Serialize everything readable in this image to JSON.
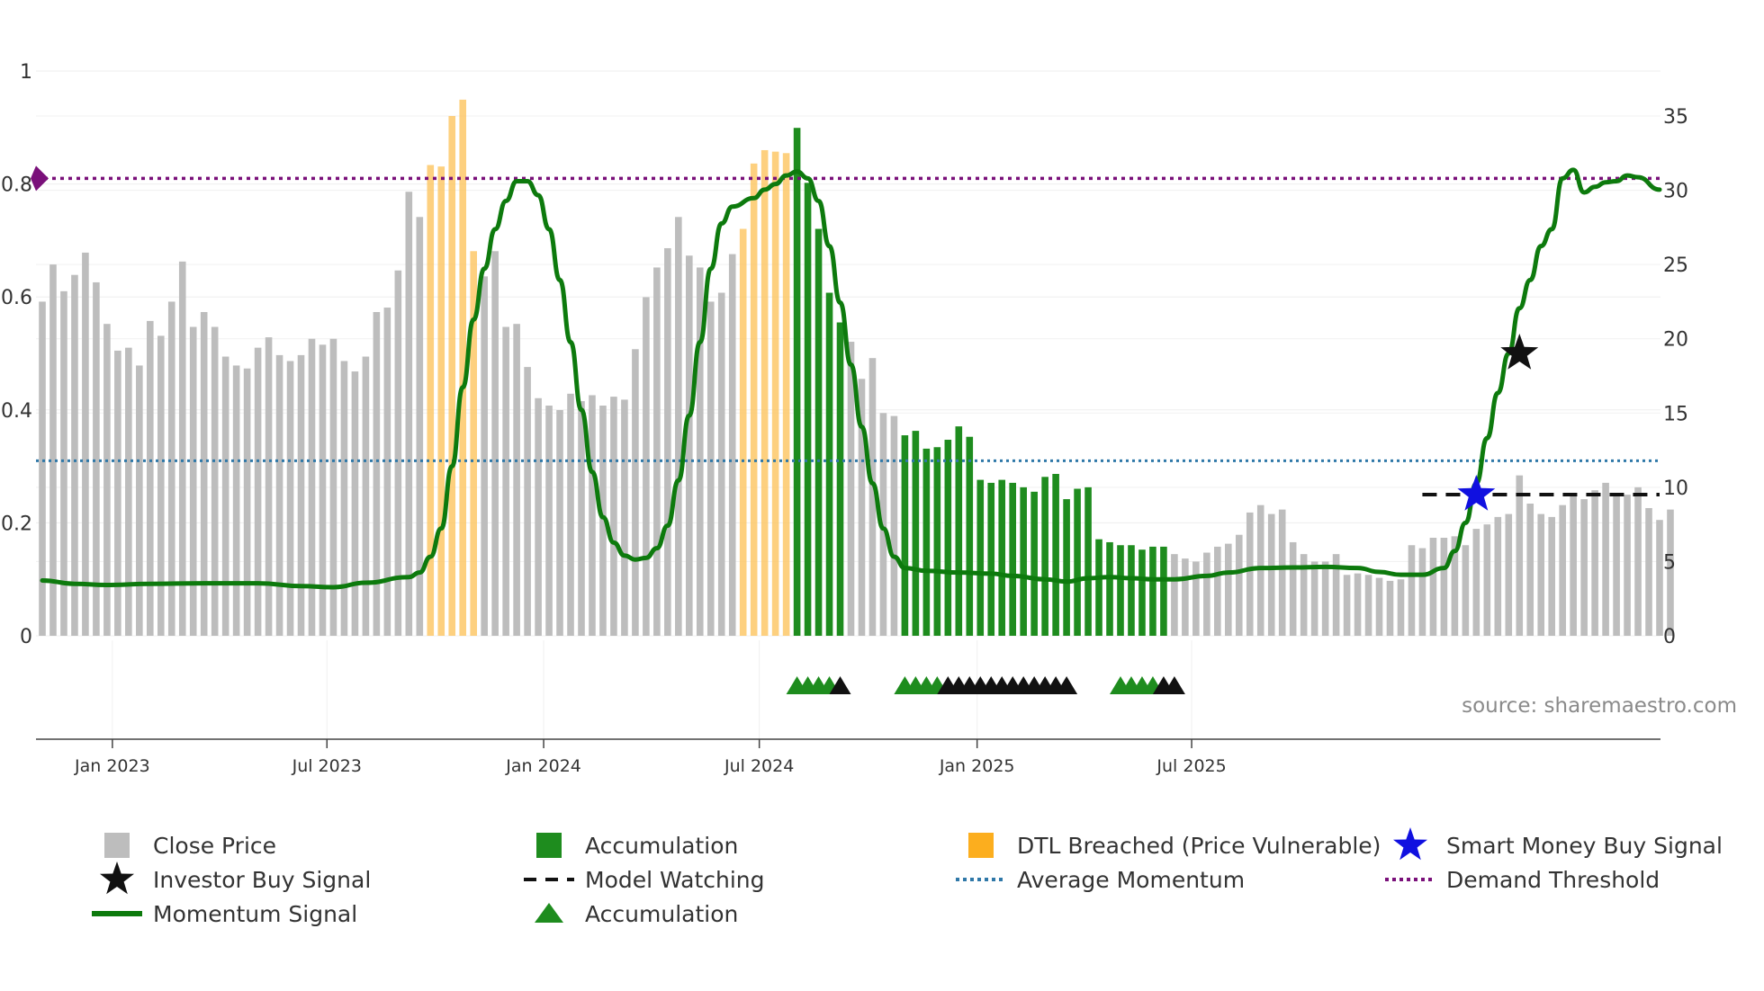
{
  "chart_data": {
    "type": "bar",
    "title": "",
    "source": "source: sharemaestro.com",
    "colors": {
      "close": "#bdbdbd",
      "accumulation": "#1e8c1e",
      "dtl": "#fcc45f",
      "momentum": "#0d7a0d",
      "model_watching": "#111111",
      "average": "#2f78a8",
      "demand": "#7a107a",
      "investor_star": "#111111",
      "smart_star": "#1010e0"
    },
    "y_left": {
      "min": 0,
      "max": 1,
      "ticks": [
        "0",
        "0.2",
        "0.4",
        "0.6",
        "0.8",
        "1"
      ]
    },
    "y_right": {
      "min": 0,
      "max": 35,
      "ticks": [
        "0",
        "5",
        "10",
        "15",
        "20",
        "25",
        "30",
        "35"
      ]
    },
    "x_ticks": [
      "Jan 2023",
      "Jul 2023",
      "Jan 2024",
      "Jul 2024",
      "Jan 2025",
      "Jul 2025"
    ],
    "close_price": [
      22.5,
      25.0,
      23.2,
      24.3,
      25.8,
      23.8,
      21.0,
      19.2,
      19.4,
      18.2,
      21.2,
      20.2,
      22.5,
      25.2,
      20.8,
      21.8,
      20.8,
      18.8,
      18.2,
      18.0,
      19.4,
      20.1,
      18.9,
      18.5,
      18.9,
      20.0,
      19.6,
      20.0,
      18.5,
      17.8,
      18.8,
      21.8,
      22.1,
      24.6,
      29.9,
      28.2,
      31.7,
      31.6,
      35.0,
      36.1,
      25.9,
      24.2,
      25.9,
      20.8,
      21.0,
      18.1,
      16.0,
      15.5,
      15.2,
      16.3,
      15.8,
      16.2,
      15.5,
      16.1,
      15.9,
      19.3,
      22.8,
      24.8,
      26.1,
      28.2,
      25.6,
      24.8,
      22.5,
      23.1,
      25.7,
      27.4,
      31.8,
      32.7,
      32.6,
      32.5,
      34.2,
      30.5,
      27.4,
      23.1,
      21.1,
      19.8,
      17.3,
      18.7,
      15.0,
      14.8,
      13.5,
      13.8,
      12.6,
      12.7,
      13.2,
      14.1,
      13.4,
      10.5,
      10.3,
      10.5,
      10.3,
      10.0,
      9.7,
      10.7,
      10.9,
      9.2,
      9.9,
      10.0,
      6.5,
      6.3,
      6.1,
      6.1,
      5.8,
      6.0,
      6.0,
      5.5,
      5.2,
      5.0,
      5.6,
      6.0,
      6.2,
      6.8,
      8.3,
      8.8,
      8.2,
      8.5,
      6.3,
      5.5,
      5.0,
      5.0,
      5.5,
      4.1,
      4.2,
      4.1,
      3.9,
      3.7,
      3.8,
      6.1,
      5.9,
      6.6,
      6.6,
      6.7,
      6.1,
      7.2,
      7.5,
      8.0,
      8.2,
      10.8,
      8.9,
      8.2,
      8.0,
      8.8,
      9.4,
      9.2,
      9.8,
      10.3,
      9.4,
      9.5,
      10.0,
      8.6,
      7.8,
      8.5
    ],
    "accumulation_bars": [
      70,
      71,
      72,
      73,
      74,
      80,
      81,
      82,
      83,
      84,
      85,
      86,
      87,
      88,
      89,
      90,
      91,
      92,
      93,
      94,
      95,
      96,
      97,
      98,
      99,
      100,
      101,
      102,
      103,
      104
    ],
    "dtl_breached_bars": [
      36,
      37,
      38,
      39,
      40,
      65,
      66,
      67,
      68,
      69
    ],
    "momentum_signal": [
      [
        0,
        0.098
      ],
      [
        3,
        0.092
      ],
      [
        6,
        0.09
      ],
      [
        10,
        0.092
      ],
      [
        15,
        0.093
      ],
      [
        20,
        0.093
      ],
      [
        24,
        0.088
      ],
      [
        27,
        0.086
      ],
      [
        30,
        0.094
      ],
      [
        34,
        0.104
      ],
      [
        35,
        0.112
      ],
      [
        36,
        0.14
      ],
      [
        37,
        0.19
      ],
      [
        38,
        0.3
      ],
      [
        39,
        0.44
      ],
      [
        40,
        0.56
      ],
      [
        41,
        0.65
      ],
      [
        42,
        0.72
      ],
      [
        43,
        0.77
      ],
      [
        44,
        0.805
      ],
      [
        45,
        0.805
      ],
      [
        46,
        0.78
      ],
      [
        47,
        0.72
      ],
      [
        48,
        0.63
      ],
      [
        49,
        0.52
      ],
      [
        50,
        0.4
      ],
      [
        51,
        0.29
      ],
      [
        52,
        0.21
      ],
      [
        53,
        0.165
      ],
      [
        54,
        0.142
      ],
      [
        55,
        0.135
      ],
      [
        56,
        0.138
      ],
      [
        57,
        0.155
      ],
      [
        58,
        0.195
      ],
      [
        59,
        0.275
      ],
      [
        60,
        0.39
      ],
      [
        61,
        0.52
      ],
      [
        62,
        0.65
      ],
      [
        63,
        0.73
      ],
      [
        64,
        0.76
      ],
      [
        66,
        0.775
      ],
      [
        67,
        0.79
      ],
      [
        68,
        0.8
      ],
      [
        69,
        0.815
      ],
      [
        70,
        0.822
      ],
      [
        71,
        0.81
      ],
      [
        72,
        0.77
      ],
      [
        73,
        0.69
      ],
      [
        74,
        0.59
      ],
      [
        75,
        0.48
      ],
      [
        76,
        0.37
      ],
      [
        77,
        0.27
      ],
      [
        78,
        0.19
      ],
      [
        79,
        0.14
      ],
      [
        80,
        0.12
      ],
      [
        82,
        0.115
      ],
      [
        85,
        0.112
      ],
      [
        88,
        0.11
      ],
      [
        90,
        0.106
      ],
      [
        93,
        0.1
      ],
      [
        95,
        0.096
      ],
      [
        97,
        0.102
      ],
      [
        99,
        0.104
      ],
      [
        101,
        0.102
      ],
      [
        103,
        0.1
      ],
      [
        105,
        0.1
      ],
      [
        108,
        0.106
      ],
      [
        110,
        0.112
      ],
      [
        113,
        0.12
      ],
      [
        116,
        0.121
      ],
      [
        119,
        0.122
      ],
      [
        122,
        0.12
      ],
      [
        124,
        0.113
      ],
      [
        126,
        0.108
      ],
      [
        128,
        0.108
      ],
      [
        130,
        0.12
      ],
      [
        131,
        0.15
      ],
      [
        132,
        0.2
      ],
      [
        133,
        0.27
      ],
      [
        134,
        0.35
      ],
      [
        135,
        0.43
      ],
      [
        136,
        0.5
      ],
      [
        137,
        0.58
      ],
      [
        138,
        0.63
      ],
      [
        139,
        0.69
      ],
      [
        140,
        0.72
      ],
      [
        141,
        0.81
      ],
      [
        142,
        0.825
      ],
      [
        143,
        0.785
      ],
      [
        144,
        0.795
      ],
      [
        145,
        0.803
      ],
      [
        146,
        0.805
      ],
      [
        147,
        0.815
      ],
      [
        148,
        0.812
      ],
      [
        150,
        0.79
      ]
    ],
    "average_momentum": 0.31,
    "demand_threshold": 0.81,
    "model_watching": {
      "from_bar": 128,
      "to_bar": 150,
      "value": 0.25
    },
    "investor_buy_signal": {
      "bar": 137,
      "value": 0.5
    },
    "smart_money_buy_signal": {
      "bar": 133,
      "value": 0.25
    },
    "accumulation_markers": [
      {
        "bar": 70,
        "color": "green"
      },
      {
        "bar": 71,
        "color": "green"
      },
      {
        "bar": 72,
        "color": "green"
      },
      {
        "bar": 73,
        "color": "green"
      },
      {
        "bar": 74,
        "color": "black"
      },
      {
        "bar": 80,
        "color": "green"
      },
      {
        "bar": 81,
        "color": "green"
      },
      {
        "bar": 82,
        "color": "green"
      },
      {
        "bar": 83,
        "color": "green"
      },
      {
        "bar": 84,
        "color": "black"
      },
      {
        "bar": 85,
        "color": "black"
      },
      {
        "bar": 86,
        "color": "black"
      },
      {
        "bar": 87,
        "color": "black"
      },
      {
        "bar": 88,
        "color": "black"
      },
      {
        "bar": 89,
        "color": "black"
      },
      {
        "bar": 90,
        "color": "black"
      },
      {
        "bar": 91,
        "color": "black"
      },
      {
        "bar": 92,
        "color": "black"
      },
      {
        "bar": 93,
        "color": "black"
      },
      {
        "bar": 94,
        "color": "black"
      },
      {
        "bar": 95,
        "color": "black"
      },
      {
        "bar": 100,
        "color": "green"
      },
      {
        "bar": 101,
        "color": "green"
      },
      {
        "bar": 102,
        "color": "green"
      },
      {
        "bar": 103,
        "color": "green"
      },
      {
        "bar": 104,
        "color": "black"
      },
      {
        "bar": 105,
        "color": "black"
      }
    ],
    "legend": [
      {
        "label": "Close Price",
        "symbol": "square",
        "color": "#bdbdbd"
      },
      {
        "label": "Accumulation",
        "symbol": "square",
        "color": "#1e8c1e"
      },
      {
        "label": "DTL Breached (Price Vulnerable)",
        "symbol": "square",
        "color": "#fcae1e"
      },
      {
        "label": "Smart Money Buy Signal",
        "symbol": "star",
        "color": "#1010e0"
      },
      {
        "label": "Investor Buy Signal",
        "symbol": "star",
        "color": "#111111"
      },
      {
        "label": "Model Watching",
        "symbol": "dash",
        "color": "#111111"
      },
      {
        "label": "Average Momentum",
        "symbol": "dot",
        "color": "#2f78a8"
      },
      {
        "label": "Demand Threshold",
        "symbol": "dot",
        "color": "#7a107a"
      },
      {
        "label": "Momentum Signal",
        "symbol": "line",
        "color": "#0d7a0d"
      },
      {
        "label": "Accumulation",
        "symbol": "triangle",
        "color": "#1e8c1e"
      }
    ]
  }
}
